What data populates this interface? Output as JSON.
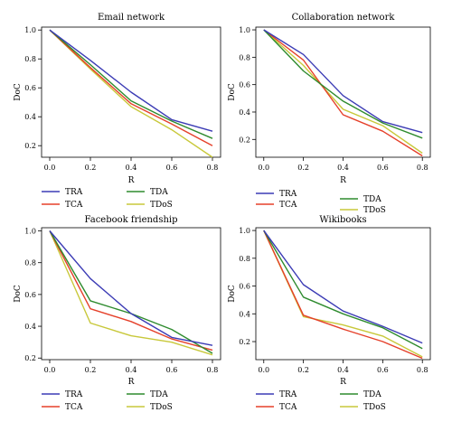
{
  "figure": {
    "colors": {
      "TRA": "#3b3bb5",
      "TCA": "#e5402a",
      "TDA": "#2e8b2e",
      "TDoS": "#c8c83a"
    }
  },
  "chart_data": [
    {
      "type": "line",
      "title": "Email network",
      "xlabel": "R",
      "ylabel": "DoC",
      "x": [
        0.0,
        0.2,
        0.4,
        0.6,
        0.8
      ],
      "x_tick_labels": [
        "0.0",
        "0.2",
        "0.4",
        "0.6",
        "0.8"
      ],
      "ylim": [
        0.12,
        1.02
      ],
      "yticks": [
        0.2,
        0.4,
        0.6,
        0.8,
        1.0
      ],
      "y_tick_labels": [
        "0.2",
        "0.4",
        "0.6",
        "0.8",
        "1.0"
      ],
      "legend_placement": "bottom",
      "legend_order": [
        "TRA",
        "TDA",
        "TCA",
        "TDoS"
      ],
      "series": [
        {
          "name": "TRA",
          "values": [
            1.0,
            0.79,
            0.57,
            0.38,
            0.3
          ]
        },
        {
          "name": "TCA",
          "values": [
            1.0,
            0.74,
            0.49,
            0.35,
            0.2
          ]
        },
        {
          "name": "TDA",
          "values": [
            1.0,
            0.76,
            0.51,
            0.37,
            0.25
          ]
        },
        {
          "name": "TDoS",
          "values": [
            1.0,
            0.73,
            0.47,
            0.31,
            0.12
          ]
        }
      ]
    },
    {
      "type": "line",
      "title": "Collaboration network",
      "xlabel": "R",
      "ylabel": "DoC",
      "x": [
        0.0,
        0.2,
        0.4,
        0.6,
        0.8
      ],
      "x_tick_labels": [
        "0.0",
        "0.2",
        "0.4",
        "0.6",
        "0.8"
      ],
      "ylim": [
        0.07,
        1.02
      ],
      "yticks": [
        0.2,
        0.4,
        0.6,
        0.8,
        1.0
      ],
      "y_tick_labels": [
        "0.2",
        "0.4",
        "0.6",
        "0.8",
        "1.0"
      ],
      "legend_placement": "bottom",
      "legend_order": [
        "TRA",
        "TDA",
        "TCA",
        "TDoS"
      ],
      "series": [
        {
          "name": "TRA",
          "values": [
            1.0,
            0.82,
            0.52,
            0.33,
            0.25
          ]
        },
        {
          "name": "TCA",
          "values": [
            1.0,
            0.78,
            0.38,
            0.26,
            0.08
          ]
        },
        {
          "name": "TDA",
          "values": [
            1.0,
            0.7,
            0.48,
            0.32,
            0.21
          ]
        },
        {
          "name": "TDoS",
          "values": [
            1.0,
            0.74,
            0.42,
            0.3,
            0.1
          ]
        }
      ]
    },
    {
      "type": "line",
      "title": "Facebook friendship",
      "xlabel": "R",
      "ylabel": "DoC",
      "x": [
        0.0,
        0.2,
        0.4,
        0.6,
        0.8
      ],
      "x_tick_labels": [
        "0.0",
        "0.2",
        "0.4",
        "0.6",
        "0.8"
      ],
      "ylim": [
        0.19,
        1.02
      ],
      "yticks": [
        0.2,
        0.4,
        0.6,
        0.8,
        1.0
      ],
      "y_tick_labels": [
        "0.2",
        "0.4",
        "0.6",
        "0.8",
        "1.0"
      ],
      "legend_placement": "bottom",
      "legend_order": [
        "TRA",
        "TDA",
        "TCA",
        "TDoS"
      ],
      "series": [
        {
          "name": "TRA",
          "values": [
            1.0,
            0.7,
            0.48,
            0.33,
            0.28
          ]
        },
        {
          "name": "TCA",
          "values": [
            1.0,
            0.51,
            0.43,
            0.32,
            0.25
          ]
        },
        {
          "name": "TDA",
          "values": [
            1.0,
            0.56,
            0.48,
            0.38,
            0.23
          ]
        },
        {
          "name": "TDoS",
          "values": [
            1.0,
            0.42,
            0.34,
            0.3,
            0.22
          ]
        }
      ]
    },
    {
      "type": "line",
      "title": "Wikibooks",
      "xlabel": "R",
      "ylabel": "DoC",
      "x": [
        0.0,
        0.2,
        0.4,
        0.6,
        0.8
      ],
      "x_tick_labels": [
        "0.0",
        "0.2",
        "0.4",
        "0.6",
        "0.8"
      ],
      "ylim": [
        0.07,
        1.02
      ],
      "yticks": [
        0.2,
        0.4,
        0.6,
        0.8,
        1.0
      ],
      "y_tick_labels": [
        "0.2",
        "0.4",
        "0.6",
        "0.8",
        "1.0"
      ],
      "legend_placement": "bottom",
      "legend_order": [
        "TRA",
        "TDA",
        "TCA",
        "TDoS"
      ],
      "series": [
        {
          "name": "TRA",
          "values": [
            1.0,
            0.61,
            0.42,
            0.31,
            0.19
          ]
        },
        {
          "name": "TCA",
          "values": [
            1.0,
            0.39,
            0.29,
            0.2,
            0.08
          ]
        },
        {
          "name": "TDA",
          "values": [
            1.0,
            0.52,
            0.4,
            0.3,
            0.15
          ]
        },
        {
          "name": "TDoS",
          "values": [
            1.0,
            0.38,
            0.32,
            0.24,
            0.09
          ]
        }
      ]
    }
  ]
}
